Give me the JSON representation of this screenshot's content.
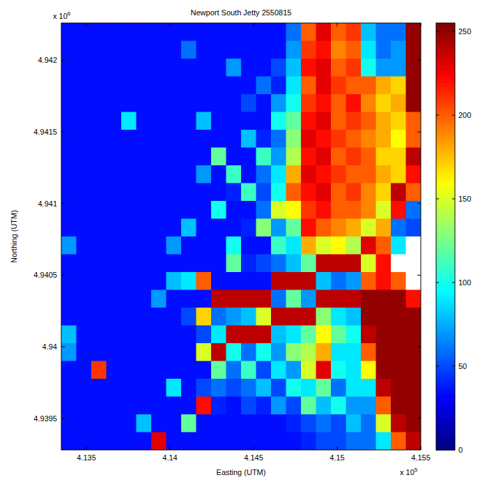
{
  "chart_data": {
    "type": "heatmap",
    "title": "Newport South Jetty 2550815",
    "xlabel": "Easting (UTM)",
    "ylabel": "Northing (UTM)",
    "axis_multipliers": {
      "x": {
        "base": "x 10",
        "exponent": "5"
      },
      "y": {
        "base": "x 10",
        "exponent": "6"
      }
    },
    "xlim": [
      4.1335,
      4.155
    ],
    "xticks": [
      4.135,
      4.14,
      4.145,
      4.15,
      4.155
    ],
    "ylim": [
      4.93928,
      4.94226
    ],
    "yticks": [
      4.9395,
      4.94,
      4.9405,
      4.941,
      4.9415,
      4.942
    ],
    "grid": false,
    "colorbar": {
      "lim": [
        0,
        255
      ],
      "ticks": [
        0,
        50,
        100,
        150,
        200,
        250
      ]
    },
    "z": [
      [
        35,
        35,
        35,
        35,
        35,
        35,
        35,
        35,
        35,
        35,
        35,
        35,
        35,
        35,
        35,
        60,
        200,
        230,
        200,
        210,
        80,
        60,
        60,
        250
      ],
      [
        35,
        35,
        35,
        35,
        35,
        35,
        35,
        35,
        60,
        35,
        35,
        35,
        35,
        35,
        35,
        70,
        210,
        220,
        190,
        200,
        90,
        60,
        70,
        250
      ],
      [
        35,
        35,
        35,
        35,
        35,
        35,
        35,
        35,
        35,
        35,
        35,
        70,
        35,
        35,
        50,
        80,
        220,
        230,
        200,
        210,
        100,
        70,
        70,
        250
      ],
      [
        35,
        35,
        35,
        35,
        35,
        35,
        35,
        35,
        35,
        35,
        35,
        35,
        35,
        60,
        40,
        90,
        200,
        230,
        210,
        200,
        200,
        180,
        170,
        250
      ],
      [
        35,
        35,
        35,
        35,
        35,
        35,
        35,
        35,
        35,
        35,
        35,
        35,
        50,
        35,
        70,
        100,
        210,
        220,
        200,
        220,
        190,
        170,
        180,
        250
      ],
      [
        35,
        35,
        35,
        35,
        90,
        35,
        35,
        35,
        35,
        80,
        35,
        35,
        35,
        35,
        100,
        120,
        220,
        230,
        200,
        210,
        200,
        180,
        170,
        200
      ],
      [
        35,
        35,
        35,
        35,
        35,
        35,
        35,
        35,
        35,
        35,
        35,
        35,
        80,
        40,
        60,
        130,
        230,
        220,
        210,
        200,
        190,
        180,
        160,
        200
      ],
      [
        35,
        35,
        35,
        35,
        35,
        35,
        35,
        35,
        35,
        35,
        120,
        35,
        35,
        110,
        70,
        140,
        220,
        230,
        200,
        210,
        200,
        170,
        170,
        240
      ],
      [
        35,
        35,
        35,
        35,
        35,
        35,
        35,
        35,
        35,
        70,
        35,
        110,
        35,
        60,
        90,
        180,
        230,
        220,
        210,
        200,
        200,
        180,
        170,
        220
      ],
      [
        35,
        35,
        35,
        35,
        35,
        35,
        35,
        35,
        35,
        35,
        35,
        40,
        110,
        50,
        100,
        200,
        220,
        230,
        200,
        210,
        190,
        170,
        240,
        200
      ],
      [
        35,
        35,
        35,
        35,
        35,
        35,
        35,
        35,
        35,
        35,
        100,
        35,
        35,
        60,
        150,
        160,
        210,
        220,
        200,
        200,
        190,
        150,
        220,
        60
      ],
      [
        35,
        35,
        35,
        35,
        35,
        35,
        35,
        35,
        80,
        35,
        35,
        35,
        40,
        130,
        70,
        120,
        220,
        200,
        190,
        180,
        150,
        180,
        60,
        50
      ],
      [
        70,
        35,
        35,
        35,
        35,
        35,
        35,
        70,
        35,
        35,
        35,
        100,
        35,
        35,
        110,
        90,
        180,
        150,
        160,
        140,
        230,
        200,
        90,
        null
      ],
      [
        35,
        35,
        35,
        35,
        35,
        35,
        35,
        35,
        35,
        35,
        35,
        120,
        40,
        50,
        60,
        80,
        120,
        240,
        240,
        240,
        150,
        220,
        null,
        null
      ],
      [
        35,
        35,
        35,
        35,
        35,
        35,
        35,
        80,
        90,
        200,
        35,
        35,
        35,
        35,
        240,
        240,
        240,
        80,
        60,
        70,
        200,
        220,
        200,
        null
      ],
      [
        35,
        35,
        35,
        35,
        35,
        35,
        70,
        35,
        35,
        35,
        240,
        240,
        240,
        240,
        60,
        120,
        70,
        240,
        240,
        240,
        250,
        250,
        250,
        220
      ],
      [
        35,
        35,
        35,
        35,
        35,
        35,
        35,
        35,
        50,
        170,
        60,
        70,
        80,
        150,
        240,
        240,
        240,
        130,
        90,
        80,
        250,
        250,
        250,
        250
      ],
      [
        80,
        35,
        35,
        35,
        35,
        35,
        35,
        35,
        35,
        50,
        90,
        240,
        240,
        240,
        80,
        90,
        120,
        160,
        120,
        100,
        240,
        250,
        250,
        250
      ],
      [
        70,
        35,
        35,
        35,
        35,
        35,
        35,
        35,
        35,
        150,
        240,
        100,
        60,
        100,
        70,
        130,
        140,
        180,
        90,
        90,
        200,
        250,
        250,
        250
      ],
      [
        35,
        35,
        210,
        35,
        35,
        35,
        35,
        35,
        35,
        35,
        120,
        60,
        110,
        50,
        90,
        70,
        150,
        230,
        100,
        90,
        160,
        250,
        250,
        250
      ],
      [
        35,
        35,
        35,
        35,
        35,
        35,
        35,
        90,
        35,
        50,
        60,
        50,
        60,
        80,
        50,
        100,
        90,
        120,
        60,
        90,
        90,
        240,
        250,
        250
      ],
      [
        35,
        35,
        35,
        35,
        35,
        35,
        35,
        35,
        35,
        220,
        40,
        35,
        50,
        40,
        70,
        50,
        120,
        80,
        100,
        70,
        70,
        200,
        250,
        250
      ],
      [
        35,
        35,
        35,
        35,
        35,
        80,
        35,
        35,
        120,
        35,
        35,
        35,
        35,
        35,
        35,
        40,
        50,
        60,
        50,
        80,
        60,
        150,
        240,
        250
      ],
      [
        35,
        35,
        35,
        35,
        35,
        35,
        230,
        35,
        35,
        35,
        35,
        35,
        35,
        35,
        35,
        35,
        40,
        50,
        50,
        60,
        60,
        90,
        200,
        240
      ]
    ]
  }
}
